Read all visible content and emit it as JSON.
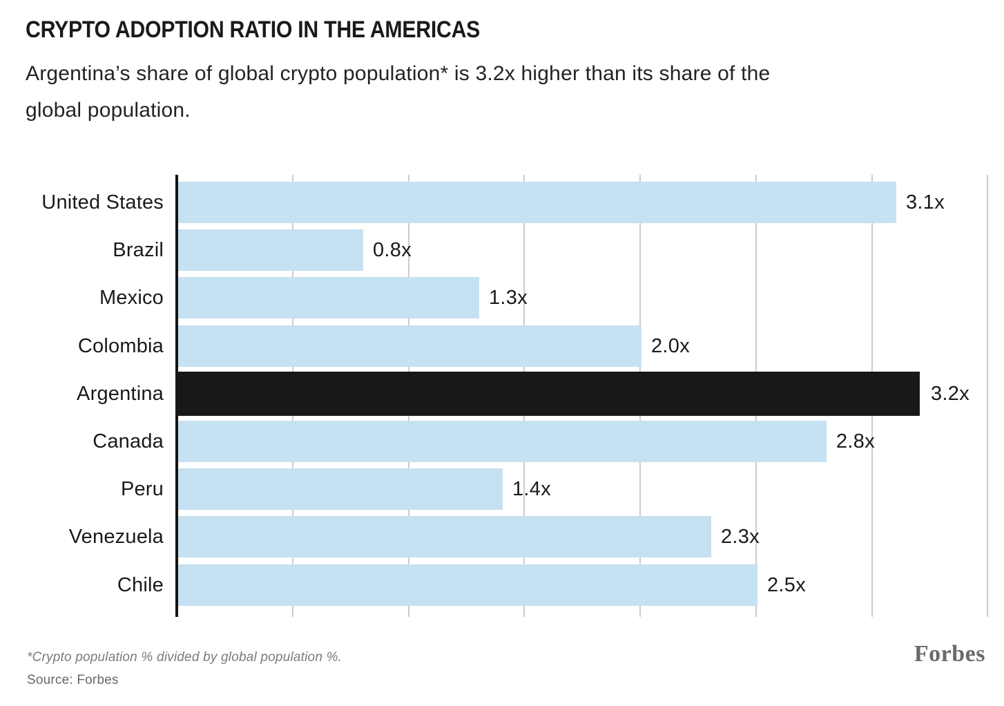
{
  "header": {
    "title": "CRYPTO ADOPTION RATIO IN THE AMERICAS",
    "subtitle_line1": "Argentina’s share of global crypto population* is 3.2x higher than its share of the",
    "subtitle_line2": "global population."
  },
  "chart_data": {
    "type": "bar",
    "orientation": "horizontal",
    "title": "CRYPTO ADOPTION RATIO IN THE AMERICAS",
    "categories": [
      "United States",
      "Brazil",
      "Mexico",
      "Colombia",
      "Argentina",
      "Canada",
      "Peru",
      "Venezuela",
      "Chile"
    ],
    "values": [
      3.1,
      0.8,
      1.3,
      2.0,
      3.2,
      2.8,
      1.4,
      2.3,
      2.5
    ],
    "value_labels": [
      "3.1x",
      "0.8x",
      "1.3x",
      "2.0x",
      "3.2x",
      "2.8x",
      "1.4x",
      "2.3x",
      "2.5x"
    ],
    "highlight_category": "Argentina",
    "xlim": [
      0,
      3.5
    ],
    "gridline_interval": 0.5,
    "grid": true,
    "legend": "none",
    "bar_color": "#c6e1f1",
    "highlight_color": "#1a1717",
    "axis_color": "#161313",
    "gridline_color": "#cccccc"
  },
  "footer": {
    "footnote": "*Crypto population % divided by global population %.",
    "source": "Source: Forbes",
    "brand": "Forbes"
  }
}
